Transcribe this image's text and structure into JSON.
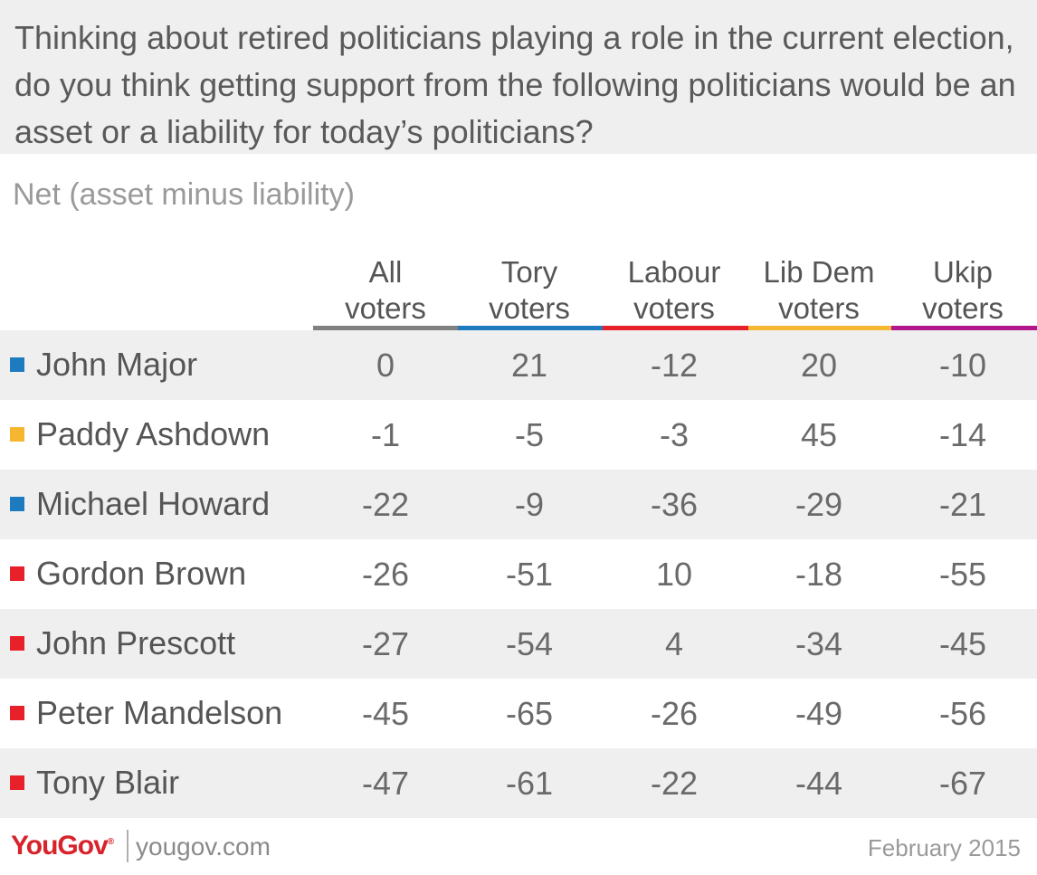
{
  "header": {
    "title": "Thinking about retired politicians playing a role in the current election, do you think getting support from the following politicians would be an asset or a liability for today’s politicians?"
  },
  "chart_data": {
    "type": "table",
    "title": "Thinking about retired politicians playing a role in the current election, do you think getting support from the following politicians would be an asset or a liability for today’s politicians?",
    "subtitle": "Net (asset minus liability)",
    "columns": [
      {
        "line1": "All",
        "line2": "voters",
        "color": "#808080"
      },
      {
        "line1": "Tory",
        "line2": "voters",
        "color": "#1f7bbf"
      },
      {
        "line1": "Labour",
        "line2": "voters",
        "color": "#e8202a"
      },
      {
        "line1": "Lib Dem",
        "line2": "voters",
        "color": "#f5b731"
      },
      {
        "line1": "Ukip",
        "line2": "voters",
        "color": "#b3168c"
      }
    ],
    "rows": [
      {
        "name": "John Major",
        "color": "#1f7bbf",
        "values": [
          "0",
          "21",
          "-12",
          "20",
          "-10"
        ]
      },
      {
        "name": "Paddy Ashdown",
        "color": "#f5b731",
        "values": [
          "-1",
          "-5",
          "-3",
          "45",
          "-14"
        ]
      },
      {
        "name": "Michael Howard",
        "color": "#1f7bbf",
        "values": [
          "-22",
          "-9",
          "-36",
          "-29",
          "-21"
        ]
      },
      {
        "name": "Gordon Brown",
        "color": "#e8202a",
        "values": [
          "-26",
          "-51",
          "10",
          "-18",
          "-55"
        ]
      },
      {
        "name": "John Prescott",
        "color": "#e8202a",
        "values": [
          "-27",
          "-54",
          "4",
          "-34",
          "-45"
        ]
      },
      {
        "name": "Peter Mandelson",
        "color": "#e8202a",
        "values": [
          "-45",
          "-65",
          "-26",
          "-49",
          "-56"
        ]
      },
      {
        "name": "Tony Blair",
        "color": "#e8202a",
        "values": [
          "-47",
          "-61",
          "-22",
          "-44",
          "-67"
        ]
      }
    ]
  },
  "footer": {
    "logo": "YouGov",
    "url": "yougov.com",
    "date": "February 2015"
  }
}
